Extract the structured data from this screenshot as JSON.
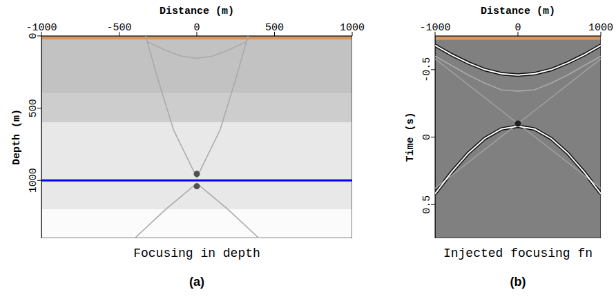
{
  "chart_data": [
    {
      "type": "line",
      "panel": "(a)",
      "title": "Focusing in depth",
      "x_label": "Distance (m)",
      "y_label": "Depth (m)",
      "xlim": [
        -1000,
        1000
      ],
      "xticks": [
        -1000,
        -500,
        0,
        500,
        1000
      ],
      "ylim": [
        0,
        1400
      ],
      "yticks": [
        0,
        500,
        1000
      ],
      "layers": [
        {
          "from": 0,
          "to": 400,
          "color": "#c2c2c2"
        },
        {
          "from": 400,
          "to": 600,
          "color": "#cdcdcd"
        },
        {
          "from": 600,
          "to": 1200,
          "color": "#e8e8e8"
        },
        {
          "from": 1200,
          "to": 1400,
          "color": "#fbfbfb"
        }
      ],
      "surface": {
        "from": 0,
        "to": 25,
        "color": "#d99760"
      },
      "reference_line": {
        "y": 1000,
        "color": "#0000ff"
      },
      "curves": [
        {
          "color": "#a8a8a8",
          "line_style": "solid",
          "x": [
            -320,
            -200,
            -100,
            0,
            100,
            200,
            320
          ],
          "y": [
            40,
            100,
            140,
            155,
            140,
            100,
            40
          ]
        },
        {
          "color": "#a8a8a8",
          "line_style": "solid",
          "x": [
            -330,
            -250,
            -150,
            0,
            150,
            250,
            330
          ],
          "y": [
            0,
            300,
            650,
            980,
            650,
            300,
            0
          ]
        },
        {
          "color": "#a8a8a8",
          "line_style": "solid",
          "x": [
            -400,
            -200,
            0,
            200,
            400
          ],
          "y": [
            1400,
            1200,
            1020,
            1200,
            1400
          ]
        }
      ],
      "focus": {
        "x": [
          0,
          0
        ],
        "y": [
          955,
          1040
        ],
        "color": "#505050"
      }
    },
    {
      "type": "line",
      "panel": "(b)",
      "title": "Injected focusing fn",
      "x_label": "Distance (m)",
      "y_label": "Time (s)",
      "xlim": [
        -1000,
        1000
      ],
      "xticks": [
        -1000,
        0,
        1000
      ],
      "ylim": [
        -0.75,
        0.75
      ],
      "yticks": [
        -0.5,
        0,
        0.5
      ],
      "background": "#808080",
      "surface": {
        "from": -0.75,
        "to": -0.72,
        "color": "#d99760"
      },
      "curves": [
        {
          "color": "#b0b0b0",
          "line_style": "solid",
          "x": [
            -1000,
            -800,
            -600,
            -400,
            -200,
            0,
            200,
            400,
            600,
            800,
            1000
          ],
          "y": [
            -0.6,
            -0.53,
            -0.46,
            -0.4,
            -0.35,
            -0.34,
            -0.35,
            -0.4,
            -0.46,
            -0.53,
            -0.6
          ]
        },
        {
          "color": "#a0a0a0",
          "line_style": "solid",
          "x": [
            -1000,
            1000
          ],
          "y": [
            -0.58,
            0.38
          ]
        },
        {
          "color": "#a0a0a0",
          "line_style": "solid",
          "x": [
            -1000,
            1000
          ],
          "y": [
            0.38,
            -0.58
          ]
        },
        {
          "color": "#ffffff",
          "line_style": "halo",
          "x": [
            -1000,
            -800,
            -600,
            -400,
            -200,
            0,
            200,
            400,
            600,
            800,
            1000
          ],
          "y": [
            -0.68,
            -0.61,
            -0.55,
            -0.5,
            -0.47,
            -0.46,
            -0.47,
            -0.5,
            -0.55,
            -0.61,
            -0.68
          ]
        },
        {
          "color": "#ffffff",
          "line_style": "halo",
          "x": [
            -1000,
            -800,
            -600,
            -400,
            -200,
            0,
            200,
            400,
            600,
            800,
            1000
          ],
          "y": [
            0.42,
            0.26,
            0.12,
            0.01,
            -0.06,
            -0.08,
            -0.06,
            0.01,
            0.12,
            0.26,
            0.42
          ]
        }
      ],
      "focus": {
        "x": [
          0
        ],
        "y": [
          -0.1
        ],
        "color": "#202020"
      }
    }
  ]
}
